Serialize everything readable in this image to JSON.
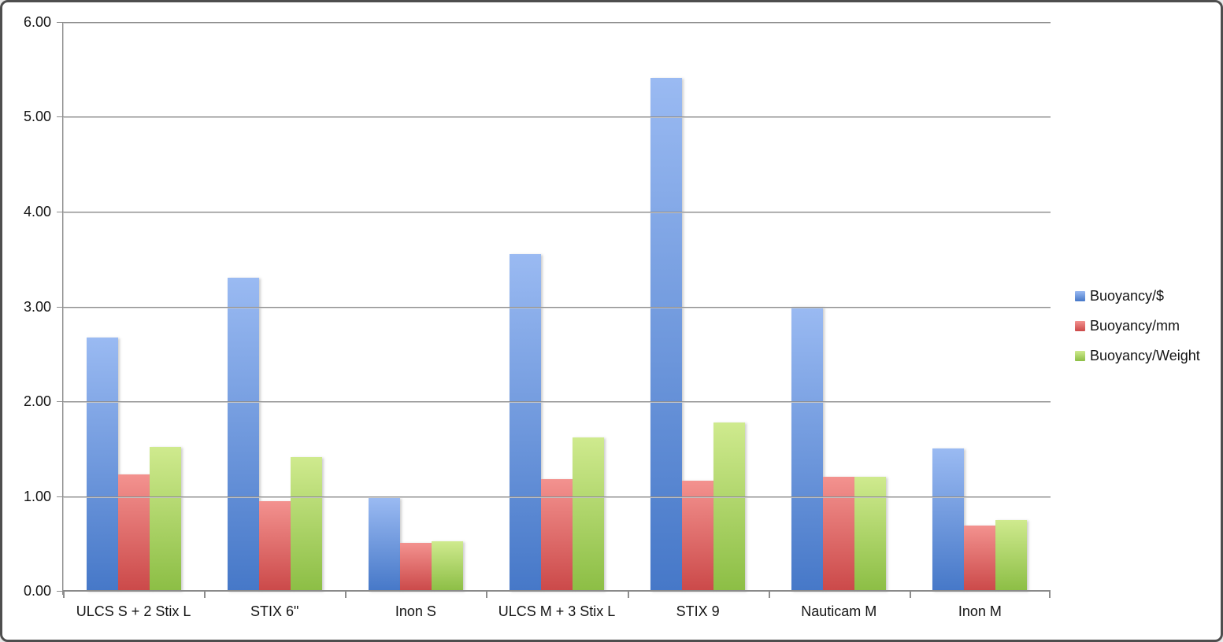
{
  "chart_data": {
    "type": "bar",
    "title": "",
    "xlabel": "",
    "ylabel": "",
    "categories": [
      "ULCS S + 2 Stix L",
      "STIX 6\"",
      "Inon S",
      "ULCS M + 3 Stix L",
      "STIX 9",
      "Nauticam M",
      "Inon M"
    ],
    "series": [
      {
        "name": "Buoyancy/$",
        "color_top": "#9ABAF2",
        "color_bottom": "#4678C8",
        "values": [
          2.67,
          3.3,
          0.98,
          3.55,
          5.41,
          3.0,
          1.5
        ]
      },
      {
        "name": "Buoyancy/mm",
        "color_top": "#F3928F",
        "color_bottom": "#CB4949",
        "values": [
          1.23,
          0.95,
          0.51,
          1.18,
          1.16,
          1.2,
          0.69
        ]
      },
      {
        "name": "Buoyancy/Weight",
        "color_top": "#CFEA8E",
        "color_bottom": "#8CBE45",
        "values": [
          1.52,
          1.41,
          0.52,
          1.62,
          1.78,
          1.2,
          0.75
        ]
      }
    ],
    "ylim": [
      0,
      6
    ],
    "ytick_labels": [
      "0.00",
      "1.00",
      "2.00",
      "3.00",
      "4.00",
      "5.00",
      "6.00"
    ],
    "grid": true,
    "legend_position": "right",
    "colors": {
      "gridline": "#8d8d8d",
      "axis": "#8a8a8a",
      "text": "#141414"
    }
  }
}
